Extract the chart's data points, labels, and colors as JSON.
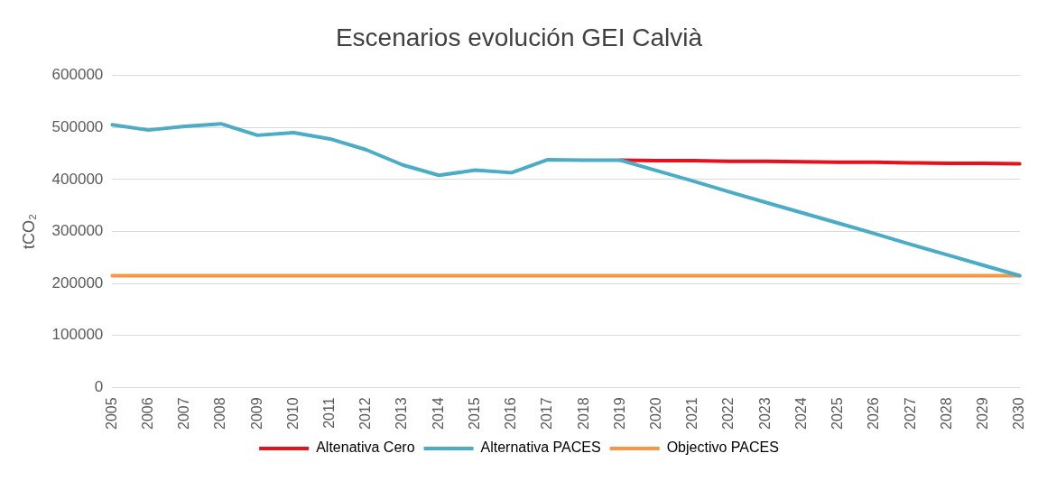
{
  "chart_data": {
    "type": "line",
    "title": "Escenarios evolución GEI Calvià",
    "ylabel": "tCO₂",
    "categories": [
      "2005",
      "2006",
      "2007",
      "2008",
      "2009",
      "2010",
      "2011",
      "2012",
      "2013",
      "2014",
      "2015",
      "2016",
      "2017",
      "2018",
      "2019",
      "2020",
      "2021",
      "2022",
      "2023",
      "2024",
      "2025",
      "2026",
      "2027",
      "2028",
      "2029",
      "2030"
    ],
    "series": [
      {
        "name": "Altenativa Cero",
        "color": "#e8101a",
        "values": [
          null,
          null,
          null,
          null,
          null,
          null,
          null,
          null,
          null,
          null,
          null,
          null,
          null,
          null,
          437000,
          436000,
          436000,
          435000,
          435000,
          434000,
          433000,
          433000,
          432000,
          431000,
          431000,
          430000
        ]
      },
      {
        "name": "Alternativa PACES",
        "color": "#4bacc6",
        "values": [
          505000,
          495000,
          502000,
          507000,
          485000,
          490000,
          478000,
          457000,
          428000,
          408000,
          418000,
          413000,
          438000,
          437000,
          437000,
          417000,
          397000,
          376000,
          356000,
          336000,
          316000,
          296000,
          275000,
          255000,
          235000,
          215000
        ]
      },
      {
        "name": "Objectivo PACES",
        "color": "#f79646",
        "values": [
          215000,
          215000,
          215000,
          215000,
          215000,
          215000,
          215000,
          215000,
          215000,
          215000,
          215000,
          215000,
          215000,
          215000,
          215000,
          215000,
          215000,
          215000,
          215000,
          215000,
          215000,
          215000,
          215000,
          215000,
          215000,
          215000
        ]
      }
    ],
    "ylim": [
      0,
      600000
    ],
    "yticks": [
      0,
      100000,
      200000,
      300000,
      400000,
      500000,
      600000
    ],
    "grid": "y",
    "legend": "bottom",
    "marker": "none",
    "line_style": "solid"
  }
}
